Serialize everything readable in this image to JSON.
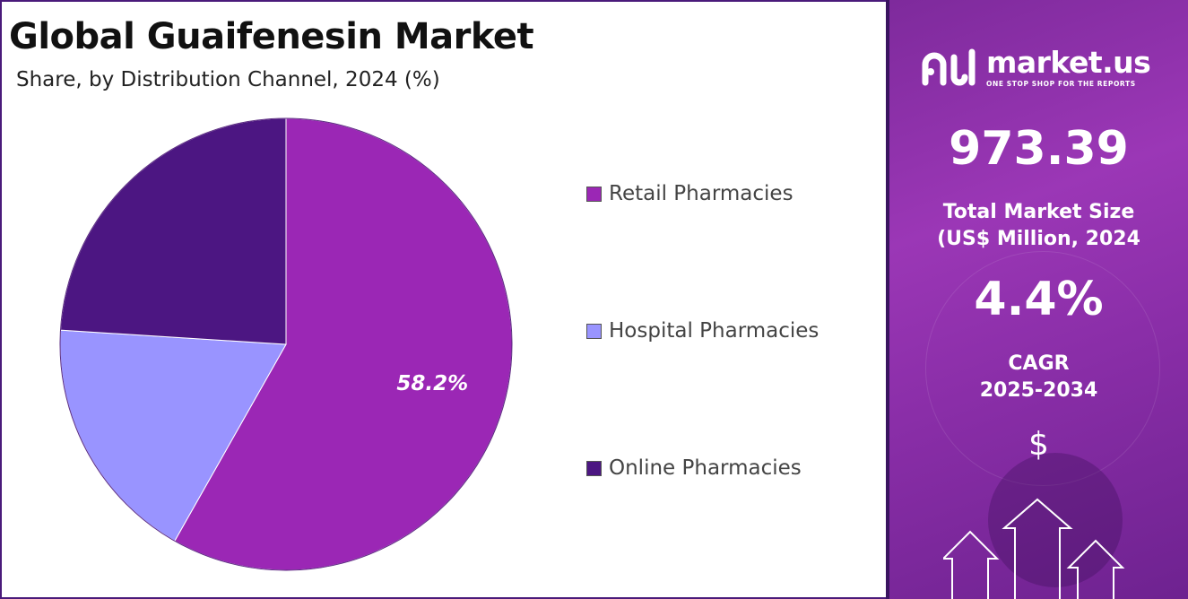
{
  "header": {
    "title": "Global Guaifenesin Market",
    "subtitle": "Share, by Distribution Channel, 2024 (%)"
  },
  "chart_data": {
    "type": "pie",
    "title": "Global Guaifenesin Market",
    "subtitle": "Share, by Distribution Channel, 2024 (%)",
    "categories": [
      "Retail Pharmacies",
      "Hospital Pharmacies",
      "Online Pharmacies"
    ],
    "values": [
      58.2,
      17.8,
      24.0
    ],
    "colors": [
      "#9b27b5",
      "#9994ff",
      "#4c1682"
    ],
    "data_labels": [
      "58.2%",
      "",
      ""
    ],
    "legend_position": "right"
  },
  "legend": {
    "items": [
      {
        "label": "Retail Pharmacies",
        "color": "#9b27b5"
      },
      {
        "label": "Hospital Pharmacies",
        "color": "#9994ff"
      },
      {
        "label": "Online Pharmacies",
        "color": "#4c1682"
      }
    ]
  },
  "sidebar": {
    "logo_name": "market.us",
    "logo_tagline": "ONE STOP SHOP FOR THE REPORTS",
    "market_size_value": "973.39",
    "market_size_label_1": "Total Market Size",
    "market_size_label_2": "(US$ Million, 2024",
    "cagr_value": "4.4%",
    "cagr_label_1": "CAGR",
    "cagr_label_2": "2025-2034",
    "currency_symbol": "$",
    "background_color": "#8a2ea8"
  }
}
